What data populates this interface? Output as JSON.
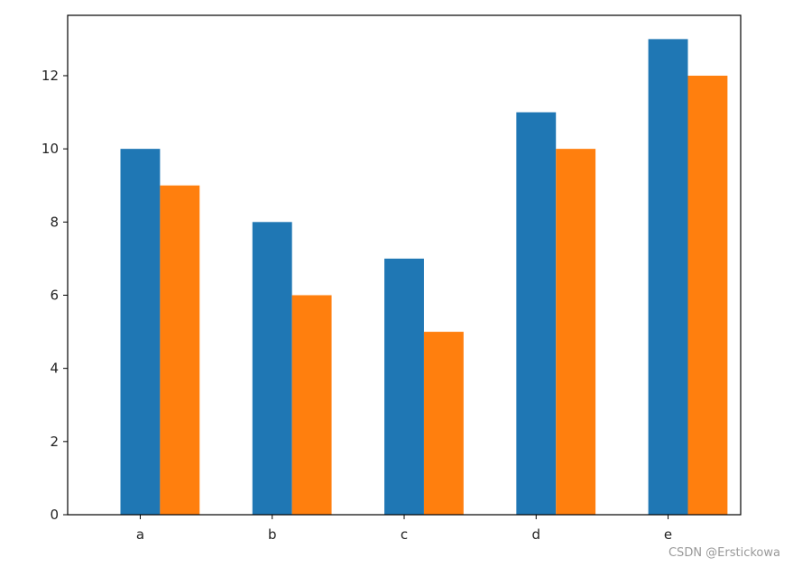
{
  "chart_data": {
    "type": "bar",
    "categories": [
      "a",
      "b",
      "c",
      "d",
      "e"
    ],
    "series": [
      {
        "values": [
          10,
          8,
          7,
          11,
          13
        ],
        "color": "#1f77b4"
      },
      {
        "values": [
          9,
          6,
          5,
          10,
          12
        ],
        "color": "#ff7f0e"
      }
    ],
    "yticks": [
      0,
      2,
      4,
      6,
      8,
      10,
      12
    ],
    "ylim": [
      0,
      13.65
    ],
    "grid": false,
    "title": "",
    "xlabel": "",
    "ylabel": ""
  },
  "watermark": "CSDN @Erstickowa"
}
